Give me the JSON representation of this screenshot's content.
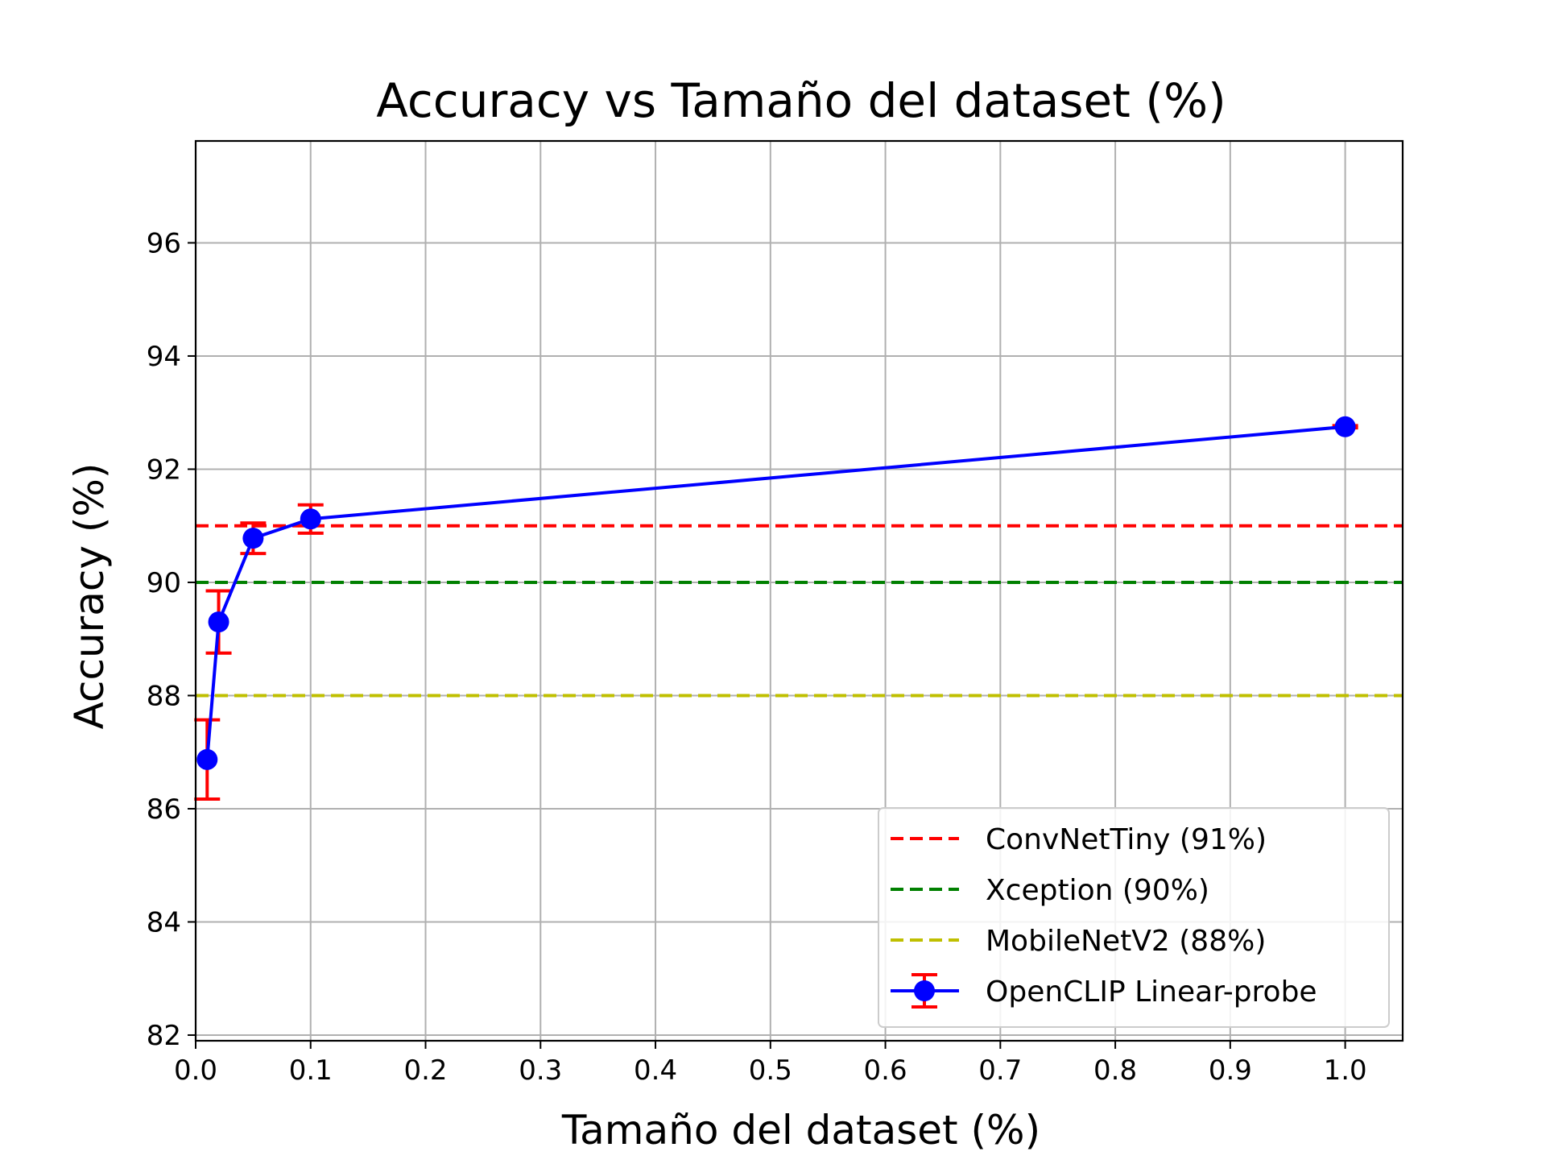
{
  "chart_data": {
    "type": "line",
    "title": "Accuracy vs Tamaño del dataset (%)",
    "xlabel": "Tamaño del dataset (%)",
    "ylabel": "Accuracy (%)",
    "xlim": [
      0.0,
      1.05
    ],
    "ylim": [
      81.9,
      97.8
    ],
    "xticks": [
      0.0,
      0.1,
      0.2,
      0.3,
      0.4,
      0.5,
      0.6,
      0.7,
      0.8,
      0.9,
      1.0
    ],
    "xtick_labels": [
      "0.0",
      "0.1",
      "0.2",
      "0.3",
      "0.4",
      "0.5",
      "0.6",
      "0.7",
      "0.8",
      "0.9",
      "1.0"
    ],
    "yticks": [
      82,
      84,
      86,
      88,
      90,
      92,
      94,
      96
    ],
    "ytick_labels": [
      "82",
      "84",
      "86",
      "88",
      "90",
      "92",
      "94",
      "96"
    ],
    "grid": true,
    "legend_position": "lower right",
    "hlines": [
      {
        "name": "ConvNetTiny (91%)",
        "y": 91,
        "color": "#ff0000",
        "style": "dashed"
      },
      {
        "name": "Xception (90%)",
        "y": 90,
        "color": "#008000",
        "style": "dashed"
      },
      {
        "name": "MobileNetV2 (88%)",
        "y": 88,
        "color": "#bfbf00",
        "style": "dashed"
      }
    ],
    "series": [
      {
        "name": "OpenCLIP Linear-probe",
        "color": "#0000ff",
        "error_color": "#ff0000",
        "marker": "circle",
        "x": [
          0.01,
          0.02,
          0.05,
          0.1,
          1.0
        ],
        "y": [
          86.87,
          89.3,
          90.78,
          91.12,
          92.75
        ],
        "yerr": [
          0.7,
          0.55,
          0.27,
          0.25,
          0.02
        ]
      }
    ]
  }
}
